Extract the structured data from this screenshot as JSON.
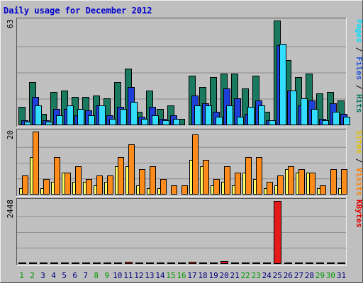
{
  "chart_data": {
    "type": "bar",
    "title": "Daily usage for December 2012",
    "x": [
      "1",
      "2",
      "3",
      "4",
      "5",
      "6",
      "7",
      "8",
      "9",
      "10",
      "11",
      "12",
      "13",
      "14",
      "15",
      "16",
      "17",
      "18",
      "19",
      "20",
      "21",
      "22",
      "23",
      "24",
      "25",
      "26",
      "27",
      "28",
      "29",
      "30",
      "31"
    ],
    "weekend_days": [
      "1",
      "2",
      "8",
      "9",
      "15",
      "16",
      "22",
      "23",
      "29",
      "30"
    ],
    "panels": [
      {
        "id": "hits",
        "max_label": "63",
        "ymax": 63,
        "side_labels": [
          {
            "text": "Pages",
            "color": "#00e0ff"
          },
          {
            "text": " / ",
            "color": "#000000"
          },
          {
            "text": "Files",
            "color": "#1a4fd8"
          },
          {
            "text": " / ",
            "color": "#000000"
          },
          {
            "text": "Hits",
            "color": "#007860"
          }
        ],
        "series": [
          {
            "name": "Hits",
            "color": "#1a7a60",
            "values": [
              11,
              26,
              7,
              20,
              21,
              17,
              17,
              18,
              16,
              26,
              34,
              8,
              21,
              10,
              12,
              4,
              30,
              23,
              29,
              31,
              31,
              22,
              30,
              8,
              63,
              39,
              29,
              31,
              19,
              20,
              15
            ]
          },
          {
            "name": "Files",
            "color": "#1c40d8",
            "values": [
              3,
              17,
              3,
              10,
              10,
              6,
              9,
              12,
              6,
              11,
              23,
              5,
              11,
              4,
              6,
              0,
              18,
              13,
              8,
              22,
              16,
              7,
              15,
              3,
              48,
              21,
              12,
              15,
              4,
              13,
              7
            ]
          },
          {
            "name": "Pages",
            "color": "#33ddff",
            "values": [
              2,
              12,
              2,
              6,
              12,
              10,
              6,
              12,
              4,
              10,
              14,
              4,
              6,
              3,
              4,
              0,
              12,
              12,
              5,
              12,
              5,
              11,
              12,
              3,
              49,
              21,
              16,
              10,
              3,
              8,
              5
            ]
          }
        ]
      },
      {
        "id": "visits",
        "max_label": "20",
        "ymax": 20,
        "side_labels": [
          {
            "text": "Sites",
            "color": "#e0c000"
          },
          {
            "text": " / ",
            "color": "#000000"
          },
          {
            "text": "Visits",
            "color": "#ff8000"
          }
        ],
        "series": [
          {
            "name": "Sites",
            "color": "#ffff66",
            "values": [
              2,
              12,
              2,
              4,
              7,
              4,
              4,
              3,
              4,
              9,
              9,
              3,
              2,
              2,
              0,
              0,
              11,
              9,
              3,
              4,
              3,
              7,
              5,
              2,
              3,
              8,
              7,
              7,
              2,
              0,
              2
            ]
          },
          {
            "name": "Visits",
            "color": "#ff8c1a",
            "values": [
              6,
              20,
              5,
              12,
              7,
              9,
              5,
              6,
              6,
              12,
              16,
              8,
              9,
              5,
              3,
              3,
              19,
              11,
              5,
              9,
              7,
              12,
              12,
              4,
              6,
              9,
              8,
              7,
              3,
              8,
              8
            ]
          }
        ]
      },
      {
        "id": "kbytes",
        "max_label": "2448",
        "ymax": 2448,
        "side_labels": [
          {
            "text": "KBytes",
            "color": "#e00000"
          }
        ],
        "series": [
          {
            "name": "KBytes",
            "color": "#e51a1a",
            "values": [
              30,
              35,
              25,
              40,
              30,
              25,
              40,
              55,
              30,
              45,
              80,
              25,
              45,
              25,
              30,
              20,
              80,
              25,
              30,
              120,
              60,
              35,
              40,
              30,
              2448,
              60,
              45,
              45,
              30,
              35,
              25
            ]
          }
        ]
      }
    ]
  }
}
